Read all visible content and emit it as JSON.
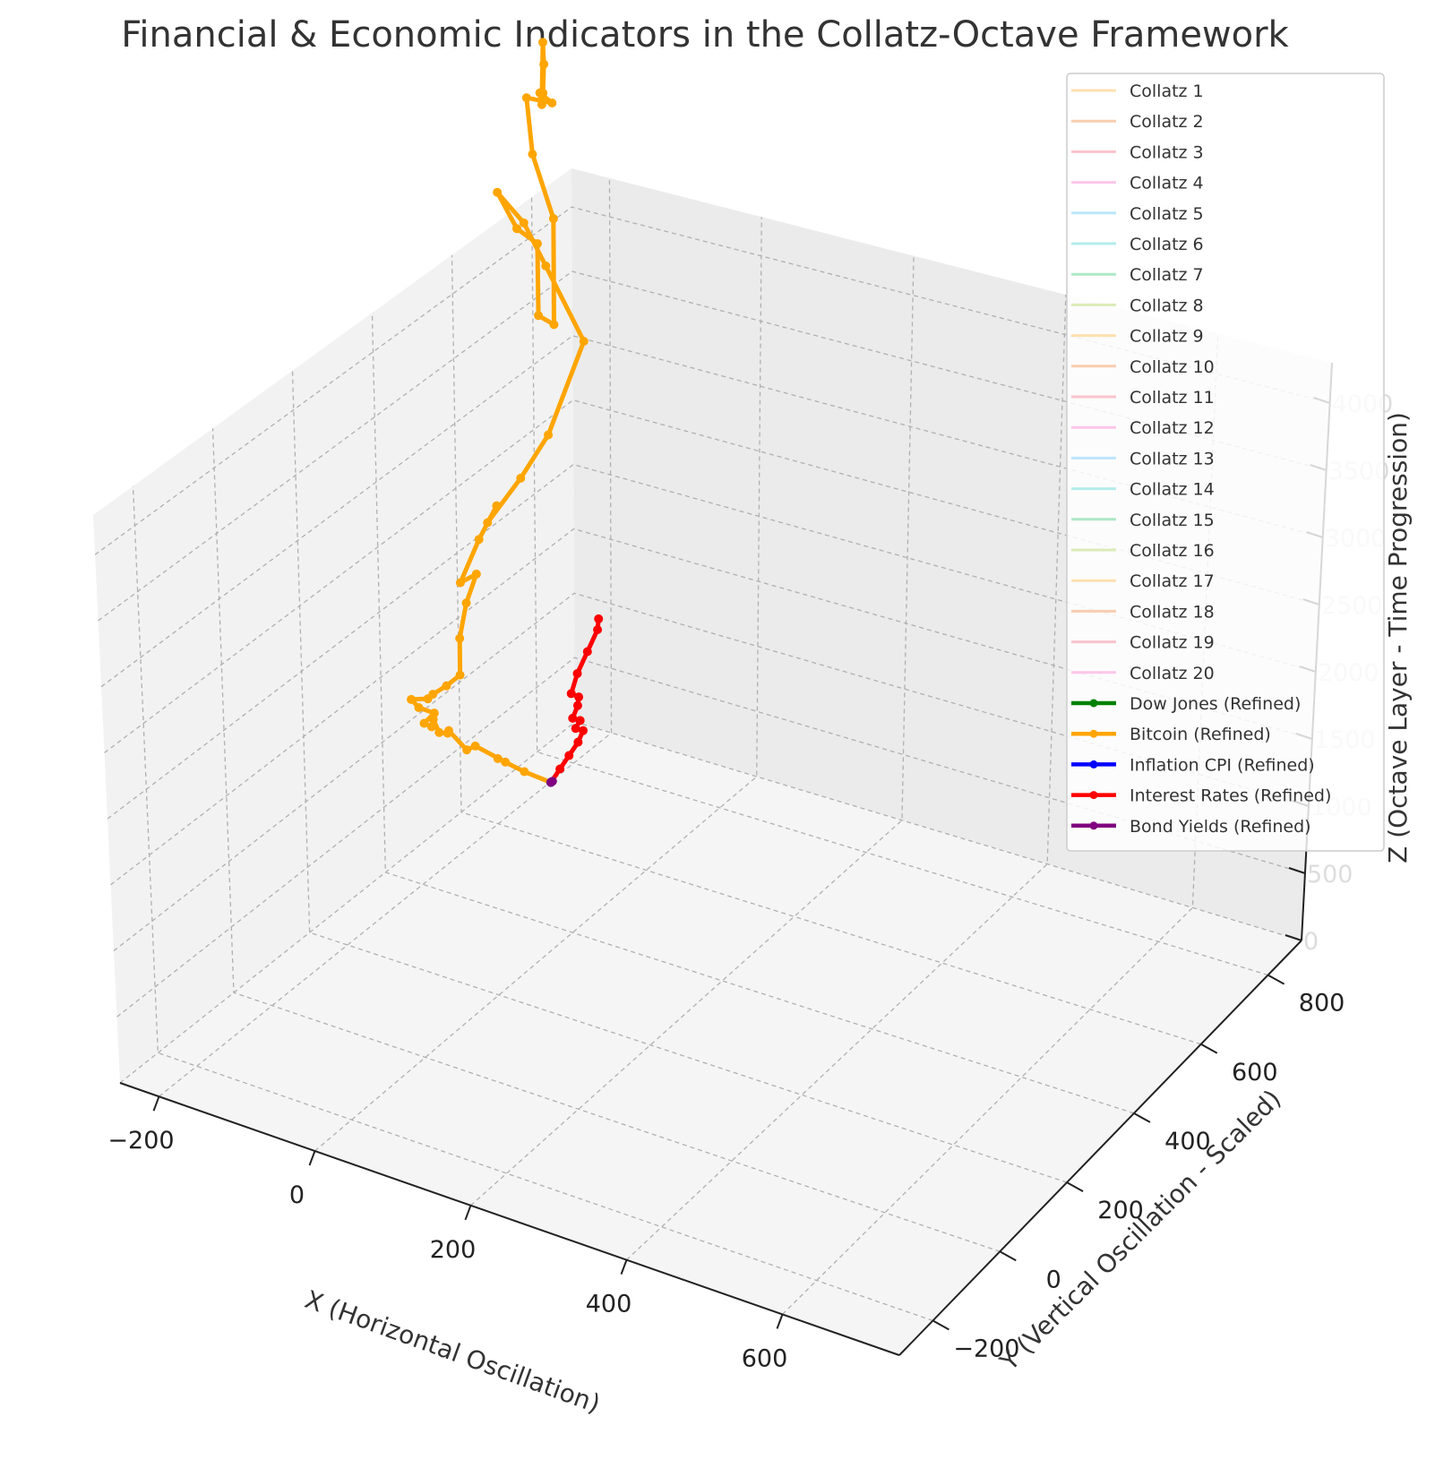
{
  "chart_data": {
    "type": "line",
    "projection": "3d",
    "title": "Financial & Economic Indicators in the Collatz-Octave Framework",
    "xlabel": "X (Horizontal Oscillation)",
    "ylabel": "Y (Vertical Oscillation - Scaled)",
    "zlabel": "Z (Octave Layer - Time Progression)",
    "xlim": [
      -250,
      750
    ],
    "ylim": [
      -300,
      900
    ],
    "zlim": [
      0,
      4300
    ],
    "x_ticks": [
      "−200",
      "0",
      "200",
      "400",
      "600"
    ],
    "x_tick_values": [
      -200,
      0,
      200,
      400,
      600
    ],
    "y_ticks": [
      "−200",
      "0",
      "200",
      "400",
      "600",
      "800"
    ],
    "y_tick_values": [
      -200,
      0,
      200,
      400,
      600,
      800
    ],
    "z_ticks": [
      "0",
      "500",
      "1000",
      "1500",
      "2000",
      "2500",
      "3000",
      "3500",
      "4000"
    ],
    "z_tick_values": [
      0,
      500,
      1000,
      1500,
      2000,
      2500,
      3000,
      3500,
      4000
    ],
    "grid": true,
    "legend_position": "top-right",
    "collatz_series": [
      {
        "name": "Collatz 1",
        "color": "#ffe0b0"
      },
      {
        "name": "Collatz 2",
        "color": "#f8cdb0"
      },
      {
        "name": "Collatz 3",
        "color": "#f9c3cc"
      },
      {
        "name": "Collatz 4",
        "color": "#fcc6e9"
      },
      {
        "name": "Collatz 5",
        "color": "#bce6fb"
      },
      {
        "name": "Collatz 6",
        "color": "#b4ecec"
      },
      {
        "name": "Collatz 7",
        "color": "#aee8c6"
      },
      {
        "name": "Collatz 8",
        "color": "#dcebb8"
      },
      {
        "name": "Collatz 9",
        "color": "#ffe0b0"
      },
      {
        "name": "Collatz 10",
        "color": "#f8cdb0"
      },
      {
        "name": "Collatz 11",
        "color": "#f9c3cc"
      },
      {
        "name": "Collatz 12",
        "color": "#fcc6e9"
      },
      {
        "name": "Collatz 13",
        "color": "#bce6fb"
      },
      {
        "name": "Collatz 14",
        "color": "#b4ecec"
      },
      {
        "name": "Collatz 15",
        "color": "#aee8c6"
      },
      {
        "name": "Collatz 16",
        "color": "#dcebb8"
      },
      {
        "name": "Collatz 17",
        "color": "#ffe0b0"
      },
      {
        "name": "Collatz 18",
        "color": "#f8cdb0"
      },
      {
        "name": "Collatz 19",
        "color": "#f9c3cc"
      },
      {
        "name": "Collatz 20",
        "color": "#fcc6e9"
      }
    ],
    "series": [
      {
        "name": "Dow Jones (Refined)",
        "color": "#008000",
        "points": [
          [
            0,
            0,
            0
          ]
        ]
      },
      {
        "name": "Bitcoin (Refined)",
        "color": "#ffa500",
        "points": [
          [
            0,
            0,
            0
          ],
          [
            -40,
            30,
            80
          ],
          [
            -80,
            60,
            180
          ],
          [
            -70,
            50,
            160
          ],
          [
            -110,
            90,
            260
          ],
          [
            -140,
            80,
            300
          ],
          [
            -150,
            120,
            380
          ],
          [
            -170,
            100,
            440
          ],
          [
            -200,
            90,
            520
          ],
          [
            -180,
            130,
            500
          ],
          [
            -210,
            100,
            560
          ],
          [
            -220,
            110,
            580
          ],
          [
            -160,
            150,
            470
          ],
          [
            -190,
            160,
            540
          ],
          [
            -200,
            170,
            600
          ],
          [
            -150,
            180,
            500
          ],
          [
            -120,
            200,
            440
          ],
          [
            -60,
            230,
            340
          ],
          [
            0,
            260,
            260
          ],
          [
            60,
            330,
            300
          ],
          [
            120,
            380,
            380
          ],
          [
            180,
            420,
            430
          ],
          [
            140,
            420,
            420
          ],
          [
            230,
            470,
            520
          ],
          [
            300,
            500,
            620
          ],
          [
            260,
            480,
            590
          ],
          [
            360,
            500,
            760
          ],
          [
            420,
            490,
            1060
          ],
          [
            500,
            480,
            1760
          ],
          [
            440,
            520,
            2400
          ],
          [
            420,
            560,
            2700
          ],
          [
            380,
            590,
            2950
          ],
          [
            420,
            580,
            2600
          ],
          [
            480,
            590,
            2350
          ],
          [
            500,
            610,
            1650
          ],
          [
            530,
            600,
            1550
          ],
          [
            520,
            590,
            2500
          ],
          [
            520,
            650,
            2900
          ],
          [
            540,
            690,
            3250
          ],
          [
            560,
            640,
            3300
          ],
          [
            460,
            560,
            3750
          ],
          [
            430,
            520,
            3800
          ],
          [
            450,
            540,
            4250
          ],
          [
            470,
            560,
            3980
          ],
          [
            520,
            620,
            3500
          ]
        ]
      },
      {
        "name": "Inflation CPI (Refined)",
        "color": "#0000ff",
        "points": [
          [
            0,
            0,
            0
          ],
          [
            2,
            0,
            2
          ]
        ]
      },
      {
        "name": "Interest Rates (Refined)",
        "color": "#ff0000",
        "points": [
          [
            0,
            0,
            0
          ],
          [
            40,
            20,
            0
          ],
          [
            80,
            40,
            0
          ],
          [
            120,
            60,
            0
          ],
          [
            150,
            80,
            0
          ],
          [
            140,
            90,
            10
          ],
          [
            160,
            100,
            20
          ],
          [
            150,
            110,
            30
          ],
          [
            180,
            130,
            40
          ],
          [
            200,
            150,
            30
          ],
          [
            190,
            160,
            50
          ],
          [
            240,
            200,
            40
          ],
          [
            300,
            240,
            30
          ],
          [
            360,
            280,
            20
          ],
          [
            380,
            300,
            30
          ]
        ]
      },
      {
        "name": "Bond Yields (Refined)",
        "color": "#800080",
        "points": [
          [
            0,
            0,
            0
          ],
          [
            4,
            0,
            3
          ]
        ]
      }
    ]
  }
}
